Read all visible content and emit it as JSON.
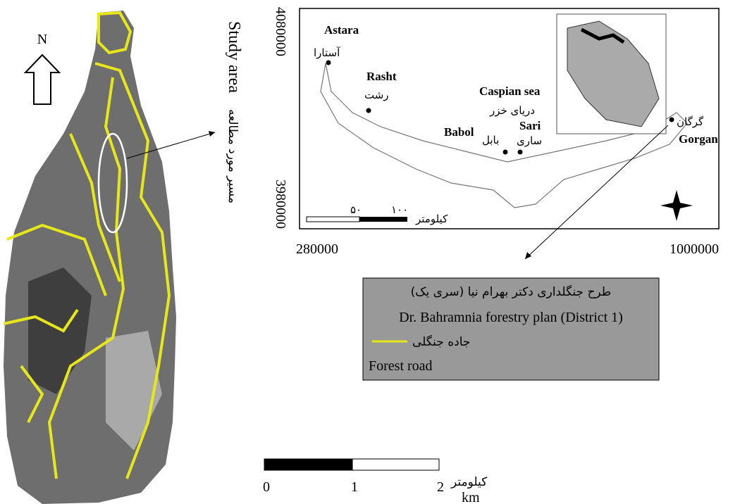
{
  "north": "N",
  "study_area": {
    "en": "Study area",
    "fa": "مسیر مورد مطالعه"
  },
  "cities": [
    {
      "en": "Astara",
      "fa": "آستارا"
    },
    {
      "en": "Rasht",
      "fa": "رشت"
    },
    {
      "en": "Caspian sea",
      "fa": "دریای خزر"
    },
    {
      "en": "Babol",
      "fa": "بابل"
    },
    {
      "en": "Sari",
      "fa": "ساری"
    },
    {
      "en": "Gorgan",
      "fa": "گرگان"
    }
  ],
  "map_axes": {
    "y": [
      "4080000",
      "3980000"
    ],
    "x": [
      "280000",
      "1000000"
    ]
  },
  "map_scale": {
    "ticks": [
      "۵۰",
      "۱۰۰"
    ],
    "unit": "کیلومتر"
  },
  "legend": {
    "title_fa": "طرح جنگلداری دکتر بهرام نیا (سری یک)",
    "title_en": "Dr. Bahramnia forestry plan (District 1)",
    "road_fa": "جاده جنگلی",
    "road_en": "Forest road"
  },
  "scale_bar": {
    "ticks": [
      "0",
      "1",
      "2"
    ],
    "unit_fa": "کیلومتر",
    "unit_en": "km"
  }
}
